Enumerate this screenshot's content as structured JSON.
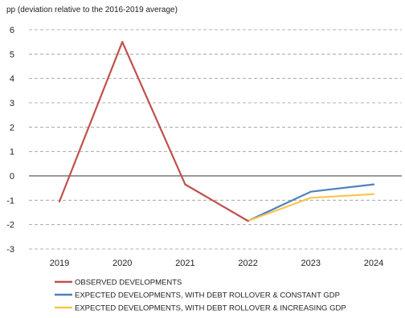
{
  "chart_data": {
    "type": "line",
    "subtitle": "pp (deviation relative to the 2016-2019 average)",
    "x": [
      "2019",
      "2020",
      "2021",
      "2022",
      "2023",
      "2024"
    ],
    "ylim": [
      -3,
      6
    ],
    "yticks": [
      6,
      5,
      4,
      3,
      2,
      1,
      0,
      -1,
      -2,
      -3
    ],
    "grid": true,
    "legend_position": "bottom",
    "series": [
      {
        "name": "OBSERVED DEVELOPMENTS",
        "color": "#c0504d",
        "values": [
          -1.05,
          5.5,
          -0.35,
          -1.85,
          null,
          null
        ]
      },
      {
        "name": "EXPECTED DEVELOPMENTS, WITH DEBT ROLLOVER & CONSTANT GDP",
        "color": "#4f81bd",
        "values": [
          null,
          null,
          null,
          -1.85,
          -0.65,
          -0.35
        ]
      },
      {
        "name": "EXPECTED DEVELOPMENTS, WITH DEBT ROLLOVER & INCREASING GDP",
        "color": "#f9c74f",
        "values": [
          null,
          null,
          null,
          -1.85,
          -0.9,
          -0.75
        ]
      }
    ]
  }
}
